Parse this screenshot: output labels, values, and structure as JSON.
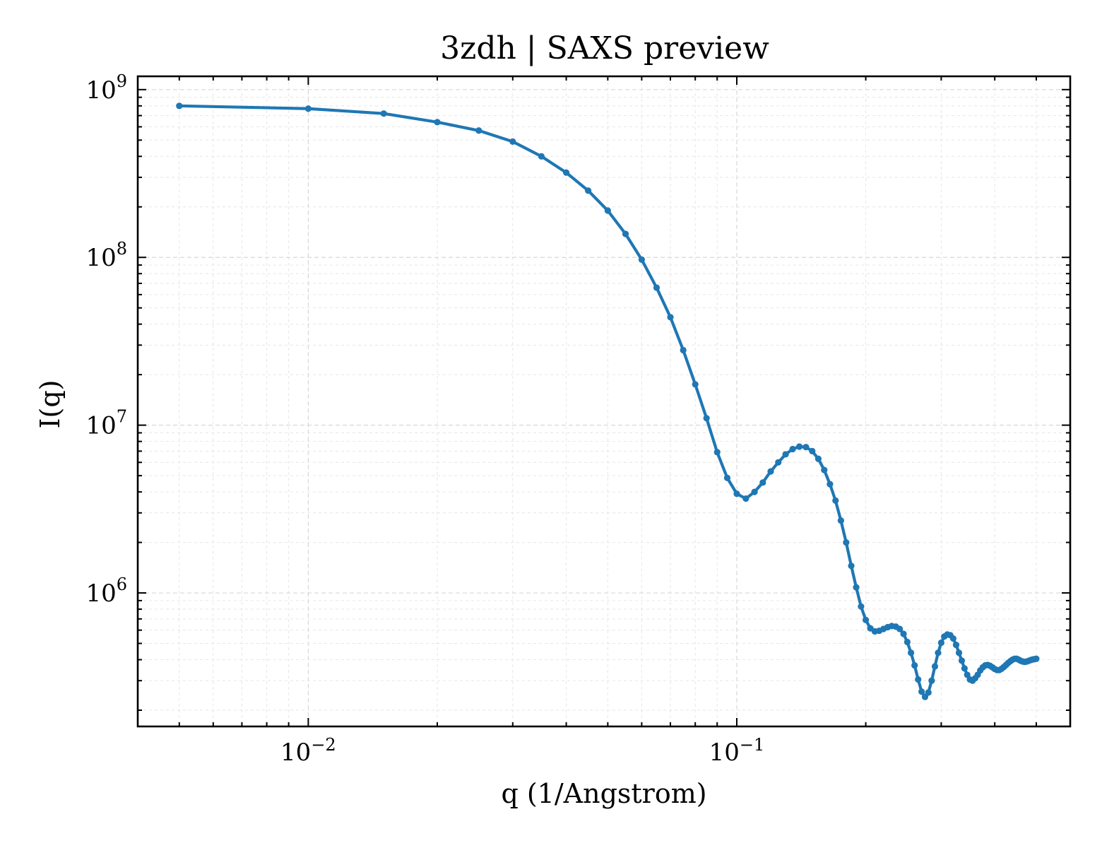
{
  "chart_data": {
    "type": "line",
    "title": "3zdh | SAXS preview",
    "xlabel": "q (1/Angstrom)",
    "ylabel": "I(q)",
    "xscale": "log",
    "yscale": "log",
    "xlim": [
      0.004,
      0.6
    ],
    "ylim": [
      160000,
      1200000000
    ],
    "grid": true,
    "legend": "none",
    "line_color": "#1f77b4",
    "x_ticks": [
      {
        "value": 0.01,
        "base": "10",
        "exp": "−2"
      },
      {
        "value": 0.1,
        "base": "10",
        "exp": "−1"
      }
    ],
    "y_ticks": [
      {
        "value": 1000000,
        "base": "10",
        "exp": "6"
      },
      {
        "value": 10000000,
        "base": "10",
        "exp": "7"
      },
      {
        "value": 100000000,
        "base": "10",
        "exp": "8"
      },
      {
        "value": 1000000000,
        "base": "10",
        "exp": "9"
      }
    ],
    "series": [
      {
        "x": [
          0.005,
          0.01,
          0.015,
          0.02,
          0.025,
          0.03,
          0.035,
          0.04,
          0.045,
          0.05,
          0.055,
          0.06,
          0.065,
          0.07,
          0.075,
          0.08,
          0.085,
          0.09,
          0.095,
          0.1,
          0.105,
          0.11,
          0.115,
          0.12,
          0.125,
          0.13,
          0.135,
          0.14,
          0.145,
          0.15,
          0.155,
          0.16,
          0.165,
          0.17,
          0.175,
          0.18,
          0.185,
          0.19,
          0.195,
          0.2,
          0.205,
          0.21,
          0.215,
          0.22,
          0.225,
          0.23,
          0.235,
          0.24,
          0.245,
          0.25,
          0.255,
          0.26,
          0.265,
          0.27,
          0.275,
          0.28,
          0.285,
          0.29,
          0.295,
          0.3,
          0.305,
          0.31,
          0.315,
          0.32,
          0.325,
          0.33,
          0.335,
          0.34,
          0.345,
          0.35,
          0.355,
          0.36,
          0.365,
          0.37,
          0.375,
          0.38,
          0.385,
          0.39,
          0.395,
          0.4,
          0.405,
          0.41,
          0.415,
          0.42,
          0.425,
          0.43,
          0.435,
          0.44,
          0.445,
          0.45,
          0.455,
          0.46,
          0.465,
          0.47,
          0.475,
          0.48,
          0.485,
          0.49,
          0.495,
          0.5
        ],
        "y": [
          800000000,
          770000000,
          720000000,
          640000000,
          570000000,
          490000000,
          400000000,
          320000000,
          250000000,
          190000000,
          138000000,
          97000000,
          66000000,
          44000000,
          28000000,
          17500000,
          11000000,
          6900000,
          4850000,
          3900000,
          3650000,
          4000000,
          4550000,
          5300000,
          6000000,
          6700000,
          7200000,
          7450000,
          7400000,
          7000000,
          6300000,
          5400000,
          4450000,
          3550000,
          2700000,
          2000000,
          1450000,
          1080000,
          830000,
          690000,
          615000,
          590000,
          595000,
          610000,
          625000,
          635000,
          630000,
          610000,
          570000,
          510000,
          440000,
          370000,
          305000,
          258000,
          240000,
          255000,
          300000,
          365000,
          440000,
          505000,
          550000,
          565000,
          560000,
          535000,
          490000,
          440000,
          395000,
          355000,
          325000,
          305000,
          300000,
          310000,
          325000,
          345000,
          360000,
          370000,
          372000,
          368000,
          360000,
          352000,
          347000,
          347000,
          353000,
          362000,
          372000,
          383000,
          392000,
          400000,
          405000,
          405000,
          400000,
          394000,
          390000,
          388000,
          390000,
          394000,
          398000,
          401000,
          403000,
          405000
        ]
      }
    ]
  }
}
